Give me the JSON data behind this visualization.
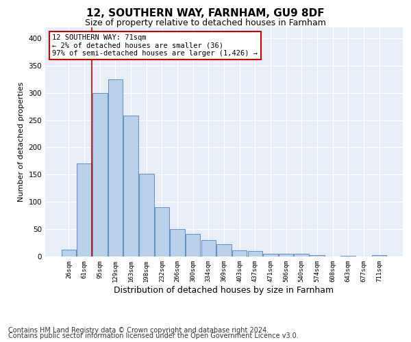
{
  "title1": "12, SOUTHERN WAY, FARNHAM, GU9 8DF",
  "title2": "Size of property relative to detached houses in Farnham",
  "xlabel": "Distribution of detached houses by size in Farnham",
  "ylabel": "Number of detached properties",
  "bar_labels": [
    "26sqm",
    "61sqm",
    "95sqm",
    "129sqm",
    "163sqm",
    "198sqm",
    "232sqm",
    "266sqm",
    "300sqm",
    "334sqm",
    "369sqm",
    "403sqm",
    "437sqm",
    "471sqm",
    "506sqm",
    "540sqm",
    "574sqm",
    "608sqm",
    "643sqm",
    "677sqm",
    "711sqm"
  ],
  "bar_heights": [
    12,
    170,
    300,
    325,
    258,
    152,
    90,
    50,
    42,
    30,
    22,
    11,
    10,
    5,
    5,
    5,
    2,
    0,
    1,
    0,
    2
  ],
  "bar_color": "#b8d0ea",
  "bar_edge_color": "#5b8fc4",
  "vline_x": 1.5,
  "vline_color": "#cc0000",
  "annotation_text": "12 SOUTHERN WAY: 71sqm\n← 2% of detached houses are smaller (36)\n97% of semi-detached houses are larger (1,426) →",
  "annotation_box_color": "#ffffff",
  "annotation_box_edge": "#cc0000",
  "ylim": [
    0,
    420
  ],
  "yticks": [
    0,
    50,
    100,
    150,
    200,
    250,
    300,
    350,
    400
  ],
  "footer1": "Contains HM Land Registry data © Crown copyright and database right 2024.",
  "footer2": "Contains public sector information licensed under the Open Government Licence v3.0.",
  "bg_color": "#e8eef8",
  "title1_fontsize": 11,
  "title2_fontsize": 9,
  "xlabel_fontsize": 9,
  "ylabel_fontsize": 8,
  "footer_fontsize": 7
}
